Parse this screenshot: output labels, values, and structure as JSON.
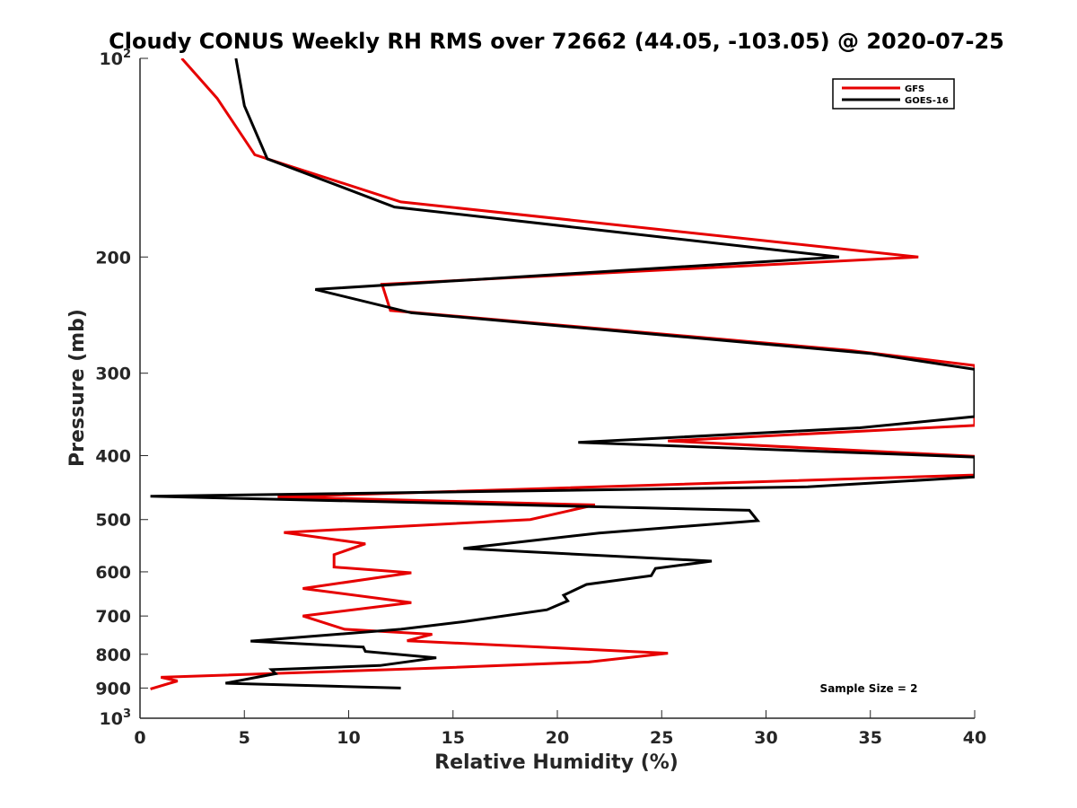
{
  "chart_data": {
    "type": "line",
    "title": "Cloudy CONUS Weekly RH RMS over 72662 (44.05, -103.05) @ 2020-07-25",
    "xlabel": "Relative Humidity (%)",
    "ylabel": "Pressure (mb)",
    "xlim": [
      0,
      40
    ],
    "ylim": [
      100,
      1000
    ],
    "y_scale": "log",
    "y_reversed": true,
    "x_ticks": [
      0,
      5,
      10,
      15,
      20,
      25,
      30,
      35,
      40
    ],
    "y_ticks": [
      {
        "value": 100,
        "label": "10",
        "sup": "2"
      },
      {
        "value": 200,
        "label": "200"
      },
      {
        "value": 300,
        "label": "300"
      },
      {
        "value": 400,
        "label": "400"
      },
      {
        "value": 500,
        "label": "500"
      },
      {
        "value": 600,
        "label": "600"
      },
      {
        "value": 700,
        "label": "700"
      },
      {
        "value": 800,
        "label": "800"
      },
      {
        "value": 900,
        "label": "900"
      },
      {
        "value": 1000,
        "label": "10",
        "sup": "3"
      }
    ],
    "grid": false,
    "legend_position": "top-right",
    "annotation": "Sample Size = 2",
    "series": [
      {
        "name": "GFS",
        "color": "#e60000",
        "points": [
          [
            2.0,
            100
          ],
          [
            3.7,
            115
          ],
          [
            5.5,
            140
          ],
          [
            12.5,
            165
          ],
          [
            37.3,
            200
          ],
          [
            11.6,
            220
          ],
          [
            12.0,
            241
          ],
          [
            34.0,
            277
          ],
          [
            40.0,
            292
          ],
          [
            40.0,
            360
          ],
          [
            25.3,
            380
          ],
          [
            40.0,
            401
          ],
          [
            40.0,
            428
          ],
          [
            6.6,
            462
          ],
          [
            21.8,
            475
          ],
          [
            18.7,
            500
          ],
          [
            6.9,
            523
          ],
          [
            10.8,
            544
          ],
          [
            9.3,
            565
          ],
          [
            9.3,
            590
          ],
          [
            13.0,
            602
          ],
          [
            7.8,
            636
          ],
          [
            13.0,
            668
          ],
          [
            7.8,
            700
          ],
          [
            9.8,
            733
          ],
          [
            14.0,
            746
          ],
          [
            12.8,
            763
          ],
          [
            25.3,
            797
          ],
          [
            21.5,
            822
          ],
          [
            14.0,
            840
          ],
          [
            1.0,
            867
          ],
          [
            1.8,
            878
          ],
          [
            0.5,
            903
          ]
        ]
      },
      {
        "name": "GOES-16",
        "color": "#000000",
        "points": [
          [
            4.6,
            100
          ],
          [
            5.0,
            118
          ],
          [
            6.1,
            142
          ],
          [
            12.2,
            168
          ],
          [
            33.5,
            200
          ],
          [
            8.4,
            224
          ],
          [
            13.0,
            243
          ],
          [
            35.0,
            280
          ],
          [
            40.0,
            296
          ],
          [
            40.0,
            349
          ],
          [
            34.5,
            363
          ],
          [
            21.0,
            382
          ],
          [
            40.0,
            402
          ],
          [
            40.0,
            431
          ],
          [
            32.0,
            446
          ],
          [
            0.5,
            461
          ],
          [
            29.2,
            484
          ],
          [
            29.6,
            502
          ],
          [
            22.0,
            524
          ],
          [
            15.5,
            553
          ],
          [
            27.4,
            578
          ],
          [
            24.7,
            593
          ],
          [
            24.5,
            608
          ],
          [
            21.4,
            627
          ],
          [
            20.3,
            651
          ],
          [
            20.5,
            664
          ],
          [
            19.5,
            685
          ],
          [
            15.5,
            714
          ],
          [
            12.5,
            733
          ],
          [
            5.3,
            764
          ],
          [
            10.7,
            780
          ],
          [
            10.8,
            792
          ],
          [
            14.2,
            810
          ],
          [
            11.5,
            832
          ],
          [
            6.3,
            844
          ],
          [
            6.5,
            856
          ],
          [
            4.1,
            885
          ],
          [
            12.5,
            900
          ]
        ]
      }
    ]
  }
}
